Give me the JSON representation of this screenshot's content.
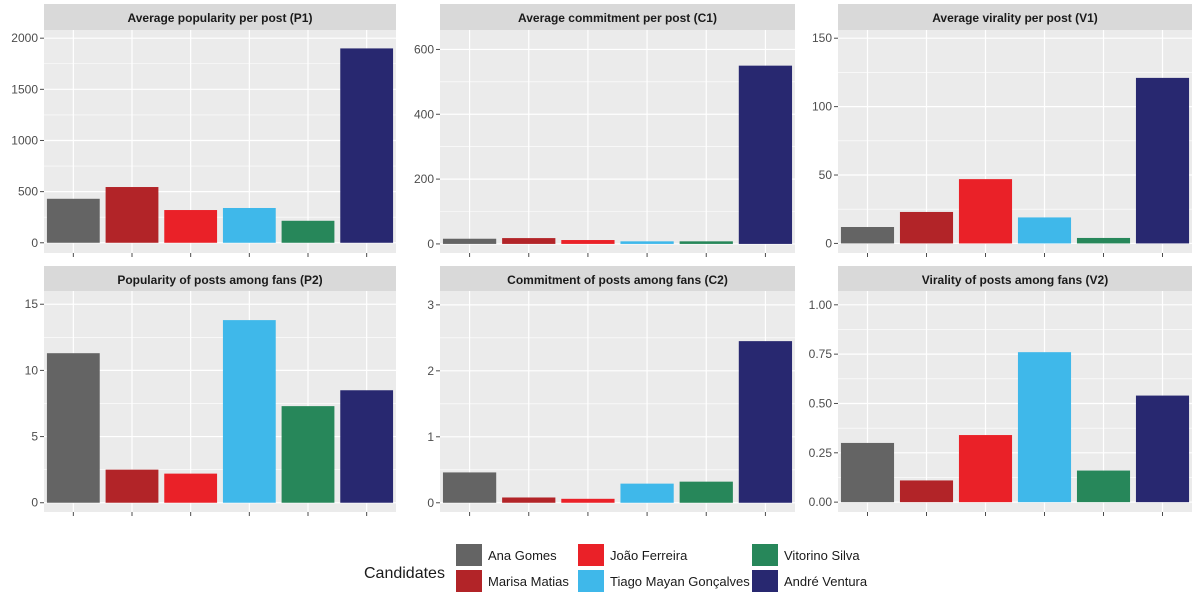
{
  "colors": {
    "panel_bg": "#ebebeb",
    "strip_bg": "#d9d9d9",
    "grid_major": "#ffffff",
    "ana_gomes": "#646464",
    "marisa_matias": "#b22428",
    "joao_ferreira": "#ea2128",
    "tiago_mayan": "#3fb8ea",
    "vitorino_silva": "#27875a",
    "andre_ventura": "#282870"
  },
  "legend": {
    "title": "Candidates",
    "items": [
      {
        "label": "Ana Gomes",
        "color": "#646464"
      },
      {
        "label": "Marisa Matias",
        "color": "#b22428"
      },
      {
        "label": "João Ferreira",
        "color": "#ea2128"
      },
      {
        "label": "Tiago Mayan Gonçalves",
        "color": "#3fb8ea"
      },
      {
        "label": "Vitorino Silva",
        "color": "#27875a"
      },
      {
        "label": "André Ventura",
        "color": "#282870"
      }
    ]
  },
  "chart_data": [
    {
      "type": "bar",
      "title": "Average popularity per post (P1)",
      "categories": [
        "Ana Gomes",
        "Marisa Matias",
        "João Ferreira",
        "Tiago Mayan Gonçalves",
        "Vitorino Silva",
        "André Ventura"
      ],
      "values": [
        430,
        545,
        320,
        340,
        215,
        1900
      ],
      "ylim": [
        -100,
        2080
      ],
      "yticks": [
        0,
        500,
        1000,
        1500,
        2000
      ],
      "ytick_labels": [
        "0",
        "500",
        "1000",
        "1500",
        "2000"
      ]
    },
    {
      "type": "bar",
      "title": "Average commitment per post (C1)",
      "categories": [
        "Ana Gomes",
        "Marisa Matias",
        "João Ferreira",
        "Tiago Mayan Gonçalves",
        "Vitorino Silva",
        "André Ventura"
      ],
      "values": [
        16,
        18,
        12,
        8,
        8,
        550
      ],
      "ylim": [
        -28,
        660
      ],
      "yticks": [
        0,
        200,
        400,
        600
      ],
      "ytick_labels": [
        "0",
        "200",
        "400",
        "600"
      ]
    },
    {
      "type": "bar",
      "title": "Average virality per post (V1)",
      "categories": [
        "Ana Gomes",
        "Marisa Matias",
        "João Ferreira",
        "Tiago Mayan Gonçalves",
        "Vitorino Silva",
        "André Ventura"
      ],
      "values": [
        12,
        23,
        47,
        19,
        4,
        121
      ],
      "ylim": [
        -7,
        156
      ],
      "yticks": [
        0,
        50,
        100,
        150
      ],
      "ytick_labels": [
        "0",
        "50",
        "100",
        "150"
      ]
    },
    {
      "type": "bar",
      "title": "Popularity of posts among fans (P2)",
      "categories": [
        "Ana Gomes",
        "Marisa Matias",
        "João Ferreira",
        "Tiago Mayan Gonçalves",
        "Vitorino Silva",
        "André Ventura"
      ],
      "values": [
        11.3,
        2.5,
        2.2,
        13.8,
        7.3,
        8.5
      ],
      "ylim": [
        -0.7,
        16.0
      ],
      "yticks": [
        0,
        5,
        10,
        15
      ],
      "ytick_labels": [
        "0",
        "5",
        "10",
        "15"
      ]
    },
    {
      "type": "bar",
      "title": "Commitment of posts among fans (C2)",
      "categories": [
        "Ana Gomes",
        "Marisa Matias",
        "João Ferreira",
        "Tiago Mayan Gonçalves",
        "Vitorino Silva",
        "André Ventura"
      ],
      "values": [
        0.46,
        0.08,
        0.06,
        0.29,
        0.32,
        2.45
      ],
      "ylim": [
        -0.14,
        3.21
      ],
      "yticks": [
        0,
        1,
        2,
        3
      ],
      "ytick_labels": [
        "0",
        "1",
        "2",
        "3"
      ]
    },
    {
      "type": "bar",
      "title": "Virality of posts among fans (V2)",
      "categories": [
        "Ana Gomes",
        "Marisa Matias",
        "João Ferreira",
        "Tiago Mayan Gonçalves",
        "Vitorino Silva",
        "André Ventura"
      ],
      "values": [
        0.3,
        0.11,
        0.34,
        0.76,
        0.16,
        0.54
      ],
      "ylim": [
        -0.05,
        1.07
      ],
      "yticks": [
        0,
        0.25,
        0.5,
        0.75,
        1.0
      ],
      "ytick_labels": [
        "0.00",
        "0.25",
        "0.50",
        "0.75",
        "1.00"
      ]
    }
  ]
}
